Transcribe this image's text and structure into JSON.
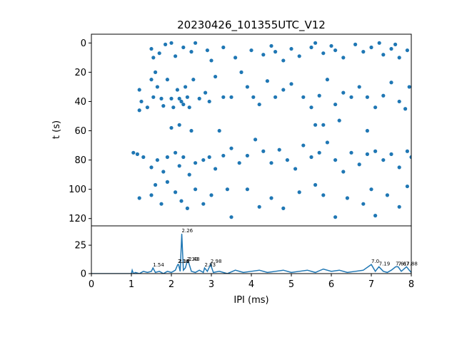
{
  "chart_data": [
    {
      "type": "scatter",
      "title": "20230426_101355UTC_V12",
      "y_label": "t (s)",
      "color": "#1f77b4",
      "xlim": [
        0,
        8
      ],
      "ylim": [
        125,
        -6
      ],
      "yticks": [
        0,
        20,
        40,
        60,
        80,
        100,
        120
      ],
      "x": [
        1.5,
        1.55,
        1.7,
        1.85,
        2.0,
        2.1,
        2.3,
        2.5,
        2.6,
        2.9,
        3.0,
        3.3,
        3.6,
        4.0,
        4.3,
        4.5,
        4.6,
        4.8,
        5.0,
        5.2,
        5.5,
        5.6,
        5.8,
        6.0,
        6.1,
        6.3,
        6.6,
        6.8,
        7.0,
        7.2,
        7.3,
        7.5,
        7.6,
        7.7,
        7.9,
        1.2,
        1.25,
        1.2,
        1.4,
        1.5,
        1.55,
        1.6,
        1.65,
        1.75,
        1.8,
        1.9,
        2.0,
        2.05,
        2.15,
        2.2,
        2.25,
        2.3,
        2.35,
        2.4,
        2.45,
        2.55,
        2.7,
        2.85,
        2.95,
        3.1,
        3.3,
        3.5,
        3.75,
        3.9,
        4.05,
        4.2,
        4.4,
        4.6,
        4.8,
        5.0,
        5.3,
        5.5,
        5.7,
        5.9,
        6.1,
        6.3,
        6.5,
        6.7,
        6.9,
        7.1,
        7.3,
        7.5,
        7.7,
        7.85,
        7.95,
        2.0,
        2.2,
        2.5,
        3.2,
        5.6,
        5.8,
        6.2,
        6.9,
        1.05,
        1.15,
        1.3,
        1.5,
        1.65,
        1.8,
        1.9,
        2.1,
        2.2,
        2.3,
        2.45,
        2.6,
        2.8,
        2.95,
        3.1,
        3.3,
        3.5,
        3.7,
        3.9,
        4.1,
        4.3,
        4.5,
        4.7,
        4.9,
        5.1,
        5.3,
        5.5,
        5.7,
        5.9,
        6.1,
        6.3,
        6.5,
        6.7,
        6.9,
        7.1,
        7.3,
        7.5,
        7.7,
        7.9,
        8.0,
        1.2,
        1.5,
        1.6,
        1.75,
        1.9,
        2.1,
        2.25,
        2.4,
        2.6,
        2.8,
        3.0,
        3.4,
        3.5,
        3.9,
        4.2,
        4.5,
        4.8,
        5.2,
        5.6,
        5.8,
        6.1,
        6.4,
        6.8,
        7.0,
        7.1,
        7.4,
        7.7,
        7.9
      ],
      "values": [
        4,
        10,
        7,
        1,
        0,
        9,
        3,
        6,
        0,
        5,
        12,
        3,
        10,
        5,
        8,
        2,
        6,
        12,
        4,
        9,
        3,
        0,
        7,
        2,
        5,
        10,
        1,
        6,
        3,
        0,
        8,
        4,
        1,
        10,
        5,
        32,
        40,
        46,
        44,
        25,
        37,
        20,
        30,
        38,
        43,
        25,
        38,
        44,
        32,
        38,
        40,
        42,
        30,
        37,
        44,
        25,
        38,
        34,
        40,
        23,
        37,
        37,
        20,
        30,
        37,
        42,
        26,
        37,
        32,
        28,
        37,
        44,
        36,
        25,
        42,
        34,
        37,
        30,
        37,
        44,
        36,
        27,
        40,
        45,
        30,
        58,
        56,
        60,
        60,
        56,
        56,
        53,
        60,
        75,
        76,
        78,
        85,
        80,
        88,
        78,
        75,
        84,
        78,
        90,
        82,
        80,
        78,
        86,
        77,
        72,
        82,
        77,
        66,
        74,
        82,
        73,
        80,
        86,
        70,
        78,
        75,
        68,
        80,
        88,
        75,
        83,
        76,
        74,
        80,
        76,
        85,
        74,
        78,
        106,
        104,
        97,
        110,
        95,
        102,
        108,
        113,
        100,
        110,
        104,
        100,
        119,
        100,
        112,
        106,
        113,
        102,
        97,
        104,
        119,
        106,
        110,
        100,
        118,
        104,
        112,
        98
      ]
    },
    {
      "type": "line",
      "x_label": "IPI (ms)",
      "color": "#1f77b4",
      "xlim": [
        0,
        8
      ],
      "ylim": [
        0,
        42
      ],
      "xticks": [
        0,
        1,
        2,
        3,
        4,
        5,
        6,
        7,
        8
      ],
      "yticks": [
        0,
        25
      ],
      "x": [
        0,
        0.5,
        1.0,
        1.02,
        1.05,
        1.1,
        1.2,
        1.3,
        1.4,
        1.5,
        1.54,
        1.6,
        1.7,
        1.8,
        1.9,
        2.0,
        2.1,
        2.16,
        2.18,
        2.22,
        2.26,
        2.3,
        2.35,
        2.39,
        2.43,
        2.5,
        2.6,
        2.7,
        2.8,
        2.83,
        2.9,
        2.98,
        3.05,
        3.2,
        3.4,
        3.6,
        3.8,
        4.0,
        4.2,
        4.4,
        4.6,
        4.8,
        5.0,
        5.2,
        5.4,
        5.6,
        5.8,
        6.0,
        6.2,
        6.4,
        6.6,
        6.8,
        7.0,
        7.1,
        7.19,
        7.3,
        7.4,
        7.5,
        7.61,
        7.67,
        7.75,
        7.88,
        7.95,
        8.0
      ],
      "values": [
        0,
        0,
        0,
        3,
        0,
        1,
        0,
        2,
        1,
        2,
        5,
        1,
        2,
        0,
        2,
        1,
        3,
        8,
        8,
        2,
        35,
        3,
        5,
        10,
        10,
        2,
        1,
        3,
        1,
        5,
        2,
        8,
        1,
        2,
        0,
        3,
        1,
        2,
        3,
        1,
        2,
        3,
        1,
        2,
        3,
        1,
        4,
        2,
        3,
        1,
        2,
        3,
        8,
        2,
        6,
        2,
        1,
        3,
        6,
        6,
        2,
        6,
        3,
        1
      ],
      "annotations": [
        {
          "x": 1.54,
          "y": 5,
          "label": "1.54"
        },
        {
          "x": 2.16,
          "y": 8,
          "label": "2.16"
        },
        {
          "x": 2.18,
          "y": 8,
          "label": "2.18"
        },
        {
          "x": 2.26,
          "y": 35,
          "label": "2.26"
        },
        {
          "x": 2.39,
          "y": 10,
          "label": "2.39"
        },
        {
          "x": 2.43,
          "y": 10,
          "label": "2.43"
        },
        {
          "x": 2.83,
          "y": 5,
          "label": "2.83"
        },
        {
          "x": 2.98,
          "y": 8,
          "label": "2.98"
        },
        {
          "x": 7.0,
          "y": 8,
          "label": "7.0"
        },
        {
          "x": 7.19,
          "y": 6,
          "label": "7.19"
        },
        {
          "x": 7.61,
          "y": 6,
          "label": "7.61"
        },
        {
          "x": 7.67,
          "y": 6,
          "label": "7.67"
        },
        {
          "x": 7.88,
          "y": 6,
          "label": "7.88"
        }
      ]
    }
  ]
}
